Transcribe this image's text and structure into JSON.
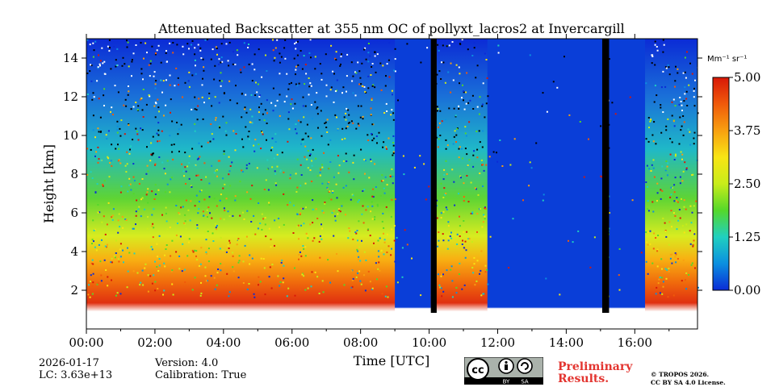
{
  "chart_data": {
    "type": "heatmap",
    "title": "Attenuated Backscatter at 355 nm OC of pollyxt_lacros2 at Invercargill",
    "xlabel": "Time [UTC]",
    "ylabel": "Height [km]",
    "x_ticks": [
      "00:00",
      "02:00",
      "04:00",
      "06:00",
      "08:00",
      "10:00",
      "12:00",
      "14:00",
      "16:00"
    ],
    "x_tick_hours": [
      0,
      2,
      4,
      6,
      8,
      10,
      12,
      14,
      16
    ],
    "xlim_hours": [
      0,
      17.83
    ],
    "y_ticks": [
      "2",
      "4",
      "6",
      "8",
      "10",
      "12",
      "14"
    ],
    "y_tick_values": [
      2,
      4,
      6,
      8,
      10,
      12,
      14
    ],
    "ylim_km": [
      0,
      15
    ],
    "colorbar": {
      "unit": "Mm⁻¹ sr⁻¹",
      "range": [
        0,
        5
      ],
      "ticks": [
        "0.00",
        "1.25",
        "2.50",
        "3.75",
        "5.00"
      ],
      "tick_values": [
        0,
        1.25,
        2.5,
        3.75,
        5
      ],
      "colors": [
        "#0b2bd6",
        "#0b8fe0",
        "#20d0c0",
        "#54d82a",
        "#c8ec1a",
        "#f8e514",
        "#f8a010",
        "#f05a0a",
        "#d81808"
      ]
    },
    "no_data_gaps_hours": [
      [
        10.05,
        10.22
      ],
      [
        15.05,
        15.25
      ]
    ],
    "clear_sky_low_signal_hours": [
      [
        9.0,
        10.05
      ],
      [
        11.7,
        15.05
      ],
      [
        15.25,
        16.3
      ]
    ]
  },
  "meta": {
    "date": "2026-01-17",
    "lc": "LC: 3.63e+13",
    "version": "Version: 4.0",
    "calibration": "Calibration: True"
  },
  "license": {
    "cc_label": "cc",
    "by_label": "BY",
    "sa_label": "SA",
    "preliminary_line1": "Preliminary",
    "preliminary_line2": "Results.",
    "copyright_line1": "© TROPOS 2026.",
    "copyright_line2": "CC BY SA 4.0 License."
  }
}
